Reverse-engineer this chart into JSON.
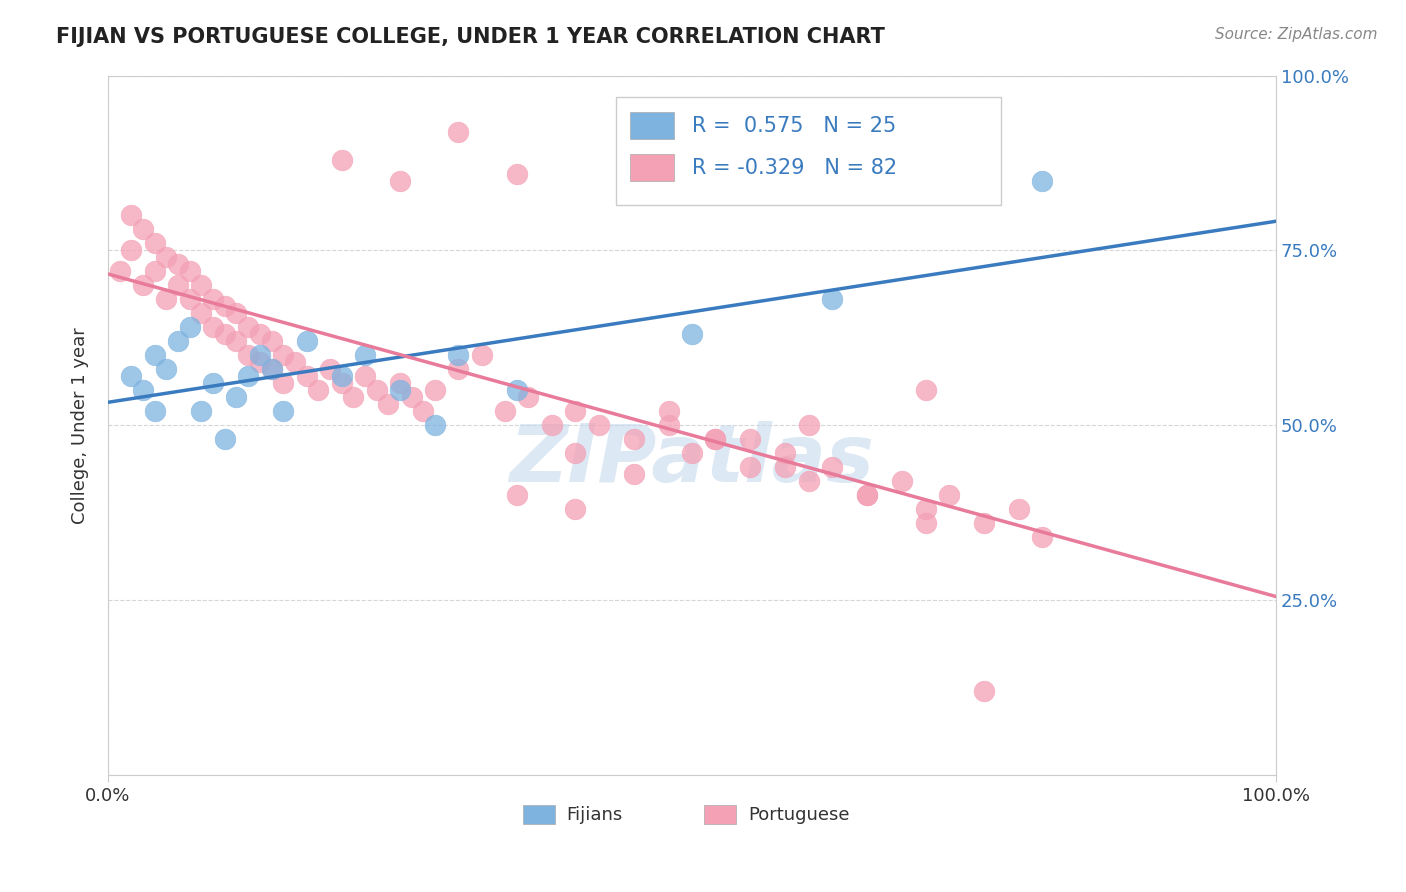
{
  "title": "FIJIAN VS PORTUGUESE COLLEGE, UNDER 1 YEAR CORRELATION CHART",
  "ylabel": "College, Under 1 year",
  "source": "Source: ZipAtlas.com",
  "watermark": "ZIPatlas",
  "fijian_R": 0.575,
  "fijian_N": 25,
  "portuguese_R": -0.329,
  "portuguese_N": 82,
  "xlim": [
    0.0,
    1.0
  ],
  "ylim": [
    0.0,
    1.0
  ],
  "fijian_color": "#7eb3e0",
  "portuguese_color": "#f4a0b5",
  "fijian_line_color": "#3a7bbf",
  "portuguese_line_color": "#e87a9a",
  "legend_color": "#3a7bbf",
  "background_color": "#ffffff",
  "grid_color": "#cccccc",
  "fijian_scatter_x": [
    0.02,
    0.03,
    0.04,
    0.04,
    0.05,
    0.06,
    0.07,
    0.08,
    0.09,
    0.1,
    0.11,
    0.12,
    0.13,
    0.14,
    0.15,
    0.17,
    0.2,
    0.22,
    0.25,
    0.28,
    0.3,
    0.35,
    0.5,
    0.62,
    0.8
  ],
  "fijian_scatter_y": [
    0.57,
    0.55,
    0.52,
    0.6,
    0.58,
    0.62,
    0.64,
    0.52,
    0.56,
    0.48,
    0.54,
    0.57,
    0.6,
    0.58,
    0.52,
    0.62,
    0.57,
    0.6,
    0.55,
    0.5,
    0.6,
    0.55,
    0.63,
    0.68,
    0.85
  ],
  "portuguese_scatter_x": [
    0.01,
    0.02,
    0.02,
    0.03,
    0.03,
    0.04,
    0.04,
    0.05,
    0.05,
    0.06,
    0.06,
    0.07,
    0.07,
    0.08,
    0.08,
    0.09,
    0.09,
    0.1,
    0.1,
    0.11,
    0.11,
    0.12,
    0.12,
    0.13,
    0.13,
    0.14,
    0.14,
    0.15,
    0.15,
    0.16,
    0.17,
    0.18,
    0.19,
    0.2,
    0.21,
    0.22,
    0.23,
    0.24,
    0.25,
    0.26,
    0.27,
    0.28,
    0.3,
    0.32,
    0.34,
    0.36,
    0.38,
    0.4,
    0.42,
    0.45,
    0.48,
    0.5,
    0.52,
    0.55,
    0.58,
    0.6,
    0.62,
    0.65,
    0.68,
    0.7,
    0.72,
    0.75,
    0.78,
    0.8,
    0.5,
    0.3,
    0.2,
    0.35,
    0.4,
    0.45,
    0.25,
    0.55,
    0.6,
    0.7,
    0.35,
    0.4,
    0.48,
    0.52,
    0.58,
    0.65,
    0.7,
    0.75
  ],
  "portuguese_scatter_y": [
    0.72,
    0.8,
    0.75,
    0.78,
    0.7,
    0.76,
    0.72,
    0.74,
    0.68,
    0.73,
    0.7,
    0.72,
    0.68,
    0.7,
    0.66,
    0.68,
    0.64,
    0.67,
    0.63,
    0.66,
    0.62,
    0.64,
    0.6,
    0.63,
    0.59,
    0.62,
    0.58,
    0.6,
    0.56,
    0.59,
    0.57,
    0.55,
    0.58,
    0.56,
    0.54,
    0.57,
    0.55,
    0.53,
    0.56,
    0.54,
    0.52,
    0.55,
    0.58,
    0.6,
    0.52,
    0.54,
    0.5,
    0.52,
    0.5,
    0.48,
    0.5,
    0.46,
    0.48,
    0.44,
    0.46,
    0.42,
    0.44,
    0.4,
    0.42,
    0.38,
    0.4,
    0.36,
    0.38,
    0.34,
    0.9,
    0.92,
    0.88,
    0.86,
    0.46,
    0.43,
    0.85,
    0.48,
    0.5,
    0.55,
    0.4,
    0.38,
    0.52,
    0.48,
    0.44,
    0.4,
    0.36,
    0.12
  ]
}
